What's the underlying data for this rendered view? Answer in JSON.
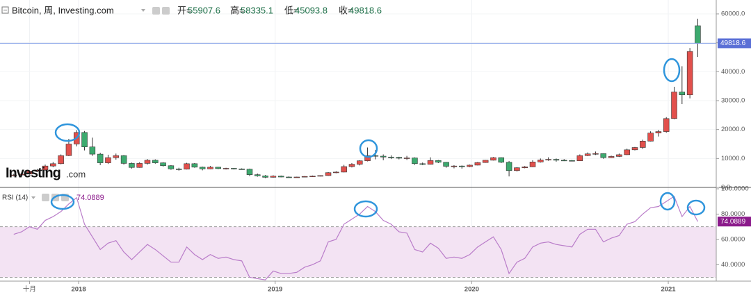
{
  "chart_data": [
    {
      "type": "candlestick",
      "title": "Bitcoin, 周, Investing.com",
      "ohlc_labels": [
        "开=",
        "高=",
        "低=",
        "收="
      ],
      "watermark": "Investing",
      "watermark_suffix": ".com",
      "x": [
        2017.67,
        2017.71,
        2017.75,
        2017.79,
        2017.83,
        2017.87,
        2017.91,
        2017.95,
        2017.99,
        2018.03,
        2018.07,
        2018.11,
        2018.15,
        2018.19,
        2018.23,
        2018.27,
        2018.31,
        2018.35,
        2018.39,
        2018.43,
        2018.47,
        2018.51,
        2018.55,
        2018.59,
        2018.63,
        2018.67,
        2018.71,
        2018.75,
        2018.79,
        2018.83,
        2018.87,
        2018.91,
        2018.95,
        2018.99,
        2019.03,
        2019.07,
        2019.11,
        2019.15,
        2019.19,
        2019.23,
        2019.27,
        2019.31,
        2019.35,
        2019.39,
        2019.43,
        2019.47,
        2019.51,
        2019.55,
        2019.59,
        2019.63,
        2019.67,
        2019.71,
        2019.75,
        2019.79,
        2019.83,
        2019.87,
        2019.91,
        2019.95,
        2019.99,
        2020.03,
        2020.07,
        2020.11,
        2020.15,
        2020.19,
        2020.23,
        2020.27,
        2020.31,
        2020.35,
        2020.39,
        2020.43,
        2020.47,
        2020.51,
        2020.55,
        2020.59,
        2020.63,
        2020.67,
        2020.71,
        2020.75,
        2020.79,
        2020.83,
        2020.87,
        2020.91,
        2020.95,
        2020.99,
        2021.03,
        2021.07,
        2021.11,
        2021.15
      ],
      "open": [
        4100,
        4300,
        4600,
        5600,
        6000,
        7400,
        8200,
        11000,
        15000,
        19000,
        14000,
        11500,
        8500,
        10300,
        11000,
        8300,
        6900,
        8300,
        9400,
        8500,
        7500,
        6400,
        6300,
        8200,
        7000,
        6400,
        7000,
        6500,
        6600,
        6400,
        6300,
        4400,
        4000,
        3500,
        3900,
        3600,
        3550,
        3600,
        3800,
        3900,
        4100,
        5100,
        5300,
        7200,
        8000,
        9200,
        11000,
        10800,
        10500,
        10400,
        10100,
        10200,
        8200,
        8000,
        9300,
        8700,
        7300,
        7400,
        7200,
        7700,
        8600,
        9400,
        10300,
        8700,
        5800,
        6800,
        7100,
        8800,
        9500,
        9700,
        9400,
        9300,
        9200,
        11000,
        11600,
        11700,
        10300,
        10700,
        11300,
        13000,
        13800,
        16000,
        18800,
        19300,
        23800,
        33000,
        32000,
        55907.6
      ],
      "high": [
        4700,
        4900,
        5900,
        6400,
        7900,
        8800,
        11400,
        16800,
        19800,
        19500,
        17200,
        12000,
        11300,
        11700,
        11200,
        8600,
        8700,
        9800,
        9700,
        8700,
        7700,
        6800,
        8500,
        8400,
        7200,
        7400,
        7100,
        6800,
        6700,
        6600,
        6500,
        4800,
        4300,
        4200,
        4100,
        3800,
        3700,
        3900,
        4100,
        4200,
        5300,
        5600,
        7800,
        8400,
        9400,
        13800,
        12900,
        11400,
        11100,
        10600,
        10900,
        10400,
        8600,
        10400,
        9500,
        8800,
        7700,
        7600,
        7900,
        8800,
        9500,
        10500,
        10400,
        9100,
        7000,
        7400,
        9400,
        10000,
        10400,
        10000,
        9800,
        9500,
        11400,
        12100,
        12400,
        11800,
        11000,
        11700,
        13400,
        14000,
        16500,
        19400,
        19900,
        24300,
        34800,
        41900,
        48200,
        58335.1
      ],
      "low": [
        3800,
        4100,
        4400,
        5300,
        5800,
        7000,
        8000,
        10800,
        14200,
        12800,
        10900,
        7700,
        8100,
        9600,
        7900,
        6500,
        6800,
        7900,
        8200,
        7200,
        6100,
        5800,
        6200,
        6800,
        5900,
        6300,
        6300,
        6200,
        6200,
        6100,
        3900,
        3700,
        3200,
        3400,
        3500,
        3400,
        3400,
        3500,
        3700,
        3800,
        4000,
        4900,
        5200,
        6900,
        7600,
        9000,
        9700,
        9400,
        9800,
        9700,
        9500,
        7800,
        7700,
        7900,
        8400,
        6800,
        6600,
        6500,
        7000,
        7600,
        8500,
        9300,
        8400,
        3800,
        5500,
        6600,
        7000,
        8600,
        9200,
        8900,
        9100,
        9000,
        9100,
        10800,
        11200,
        9900,
        10200,
        10500,
        11200,
        12800,
        13300,
        15900,
        17600,
        18900,
        23600,
        28800,
        30800,
        45093.8
      ],
      "close": [
        4300,
        4600,
        5600,
        6000,
        7400,
        8200,
        11000,
        15000,
        19000,
        14000,
        11500,
        8500,
        10300,
        11000,
        8300,
        6900,
        8300,
        9400,
        8500,
        7500,
        6400,
        6300,
        8200,
        7000,
        6400,
        7000,
        6500,
        6600,
        6400,
        6300,
        4400,
        4000,
        3500,
        3900,
        3600,
        3550,
        3600,
        3800,
        3900,
        4100,
        5100,
        5300,
        7200,
        8000,
        9200,
        11000,
        10800,
        10500,
        10400,
        10100,
        10200,
        8200,
        8000,
        9300,
        8700,
        7300,
        7400,
        7200,
        7700,
        8600,
        9400,
        10300,
        8700,
        5800,
        6800,
        7100,
        8800,
        9500,
        9700,
        9400,
        9300,
        9200,
        11000,
        11600,
        11700,
        10300,
        10700,
        11300,
        13000,
        13800,
        16000,
        18800,
        19300,
        23800,
        33000,
        32000,
        47000,
        49818.6
      ],
      "up_color": "#e2504c",
      "down_color": "#3daa6f",
      "last_line_color": "#8aa4e8",
      "last_label_color": "#5a6fd6",
      "xlim": [
        2017.6,
        2021.244
      ],
      "xticks": [
        {
          "value": 2017.75,
          "label": "十月"
        },
        2018,
        2019,
        2020,
        2021
      ],
      "ylim": [
        0,
        64800
      ],
      "yticks": [
        {
          "value": 0,
          "label": "0.0"
        },
        {
          "value": 10000,
          "label": "10000.0"
        },
        {
          "value": 20000,
          "label": "20000.0"
        },
        {
          "value": 30000,
          "label": "30000.0"
        },
        {
          "value": 40000,
          "label": "40000.0"
        },
        {
          "value": 50000,
          "label": "50000.0"
        },
        {
          "value": 60000,
          "label": "60000.0"
        }
      ],
      "grid": true
    },
    {
      "type": "line",
      "title": "RSI (14)",
      "x": [
        2017.67,
        2017.71,
        2017.75,
        2017.79,
        2017.83,
        2017.87,
        2017.91,
        2017.95,
        2017.99,
        2018.03,
        2018.07,
        2018.11,
        2018.15,
        2018.19,
        2018.23,
        2018.27,
        2018.31,
        2018.35,
        2018.39,
        2018.43,
        2018.47,
        2018.51,
        2018.55,
        2018.59,
        2018.63,
        2018.67,
        2018.71,
        2018.75,
        2018.79,
        2018.83,
        2018.87,
        2018.91,
        2018.95,
        2018.99,
        2019.03,
        2019.07,
        2019.11,
        2019.15,
        2019.19,
        2019.23,
        2019.27,
        2019.31,
        2019.35,
        2019.39,
        2019.43,
        2019.47,
        2019.51,
        2019.55,
        2019.59,
        2019.63,
        2019.67,
        2019.71,
        2019.75,
        2019.79,
        2019.83,
        2019.87,
        2019.91,
        2019.95,
        2019.99,
        2020.03,
        2020.07,
        2020.11,
        2020.15,
        2020.19,
        2020.23,
        2020.27,
        2020.31,
        2020.35,
        2020.39,
        2020.43,
        2020.47,
        2020.51,
        2020.55,
        2020.59,
        2020.63,
        2020.67,
        2020.71,
        2020.75,
        2020.79,
        2020.83,
        2020.87,
        2020.91,
        2020.95,
        2020.99,
        2021.03,
        2021.07,
        2021.11,
        2021.15
      ],
      "values": [
        64,
        66,
        70,
        68,
        75,
        78,
        82,
        88,
        93,
        72,
        62,
        52,
        57,
        59,
        50,
        44,
        50,
        56,
        52,
        47,
        42,
        42,
        54,
        48,
        44,
        48,
        45,
        46,
        44,
        43,
        30,
        29,
        28,
        35,
        33,
        33,
        34,
        38,
        40,
        43,
        58,
        60,
        72,
        76,
        80,
        86,
        82,
        75,
        72,
        66,
        65,
        52,
        50,
        57,
        53,
        45,
        46,
        45,
        48,
        54,
        58,
        62,
        52,
        33,
        42,
        45,
        54,
        57,
        58,
        56,
        55,
        54,
        64,
        68,
        68,
        58,
        61,
        63,
        72,
        74,
        80,
        85,
        86,
        90,
        94,
        78,
        86,
        74.0889
      ],
      "color": "#b97cc9",
      "label_color": "#8b1a8b",
      "band": [
        30,
        70
      ],
      "band_color": "#f3e3f3",
      "xlim": [
        2017.6,
        2021.244
      ],
      "ylim": [
        27,
        100
      ],
      "yticks": [
        {
          "value": 40,
          "label": "40.0000"
        },
        {
          "value": 60,
          "label": "60.0000"
        },
        {
          "value": 80,
          "label": "80.0000"
        },
        {
          "value": 100,
          "label": "100.0000"
        }
      ]
    }
  ]
}
